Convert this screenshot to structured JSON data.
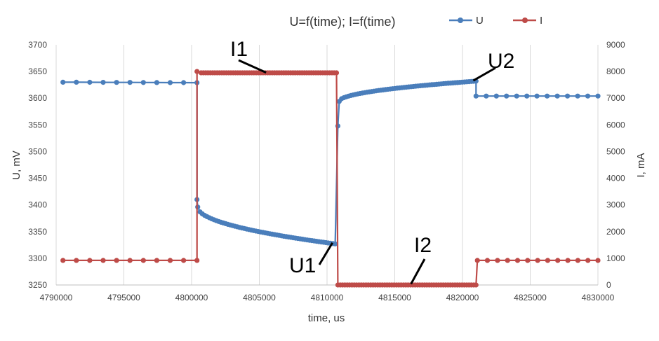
{
  "chart_data": {
    "type": "line",
    "title": "U=f(time); I=f(time)",
    "xlabel": "time, us",
    "ylabel_left": "U, mV",
    "ylabel_right": "I, mA",
    "xlim": [
      4790000,
      4830000
    ],
    "ylim_left": [
      3250,
      3700
    ],
    "ylim_right": [
      0,
      9000
    ],
    "x_ticks": [
      "4790000",
      "4795000",
      "4800000",
      "4805000",
      "4810000",
      "4815000",
      "4820000",
      "4825000",
      "4830000"
    ],
    "y_left_ticks": [
      "3700",
      "3650",
      "3600",
      "3550",
      "3500",
      "3450",
      "3400",
      "3350",
      "3300",
      "3250"
    ],
    "y_right_ticks": [
      "9000",
      "8000",
      "7000",
      "6000",
      "5000",
      "4000",
      "3000",
      "2000",
      "1000",
      "0"
    ],
    "grid": "vertical",
    "legend_position": "top-right",
    "colors": {
      "U": "#4a7ebb",
      "I": "#be4b48"
    },
    "series": [
      {
        "name": "U",
        "axis": "left",
        "segments": [
          {
            "x_start": 4790500,
            "x_end": 4800400,
            "y_start": 3630,
            "y_end": 3629,
            "n": 11,
            "shape": "linear"
          },
          {
            "x_start": 4800450,
            "x_end": 4810600,
            "y_start": 3396,
            "y_end": 3327,
            "n": 60,
            "shape": "sqrt",
            "head": [
              [
                4800400,
                3410
              ]
            ]
          },
          {
            "x_start": 4810900,
            "x_end": 4821000,
            "y_start": 3594,
            "y_end": 3632,
            "n": 60,
            "shape": "sqrt",
            "head": [
              [
                4810800,
                3548
              ]
            ]
          },
          {
            "x_start": 4821000,
            "x_end": 4830000,
            "y_start": 3604,
            "y_end": 3604,
            "n": 13,
            "shape": "linear"
          }
        ]
      },
      {
        "name": "I",
        "axis": "right",
        "segments": [
          {
            "x_start": 4790500,
            "x_end": 4800400,
            "y_start": 920,
            "y_end": 920,
            "n": 11,
            "shape": "linear"
          },
          {
            "x_start": 4800700,
            "x_end": 4810700,
            "y_start": 7950,
            "y_end": 7950,
            "n": 60,
            "shape": "linear",
            "head": [
              [
                4800400,
                8000
              ]
            ]
          },
          {
            "x_start": 4810800,
            "x_end": 4821000,
            "y_start": 0,
            "y_end": 0,
            "n": 60,
            "shape": "linear"
          },
          {
            "x_start": 4821100,
            "x_end": 4830000,
            "y_start": 920,
            "y_end": 920,
            "n": 13,
            "shape": "linear"
          }
        ]
      }
    ],
    "annotations": [
      {
        "text": "I1",
        "point": [
          4805500,
          3648
        ],
        "axis": "left"
      },
      {
        "text": "U2",
        "point": [
          4820800,
          3633
        ],
        "axis": "left"
      },
      {
        "text": "U1",
        "point": [
          4810400,
          3329
        ],
        "axis": "left"
      },
      {
        "text": "I2",
        "point": [
          4816200,
          3252
        ],
        "axis": "left"
      }
    ]
  }
}
